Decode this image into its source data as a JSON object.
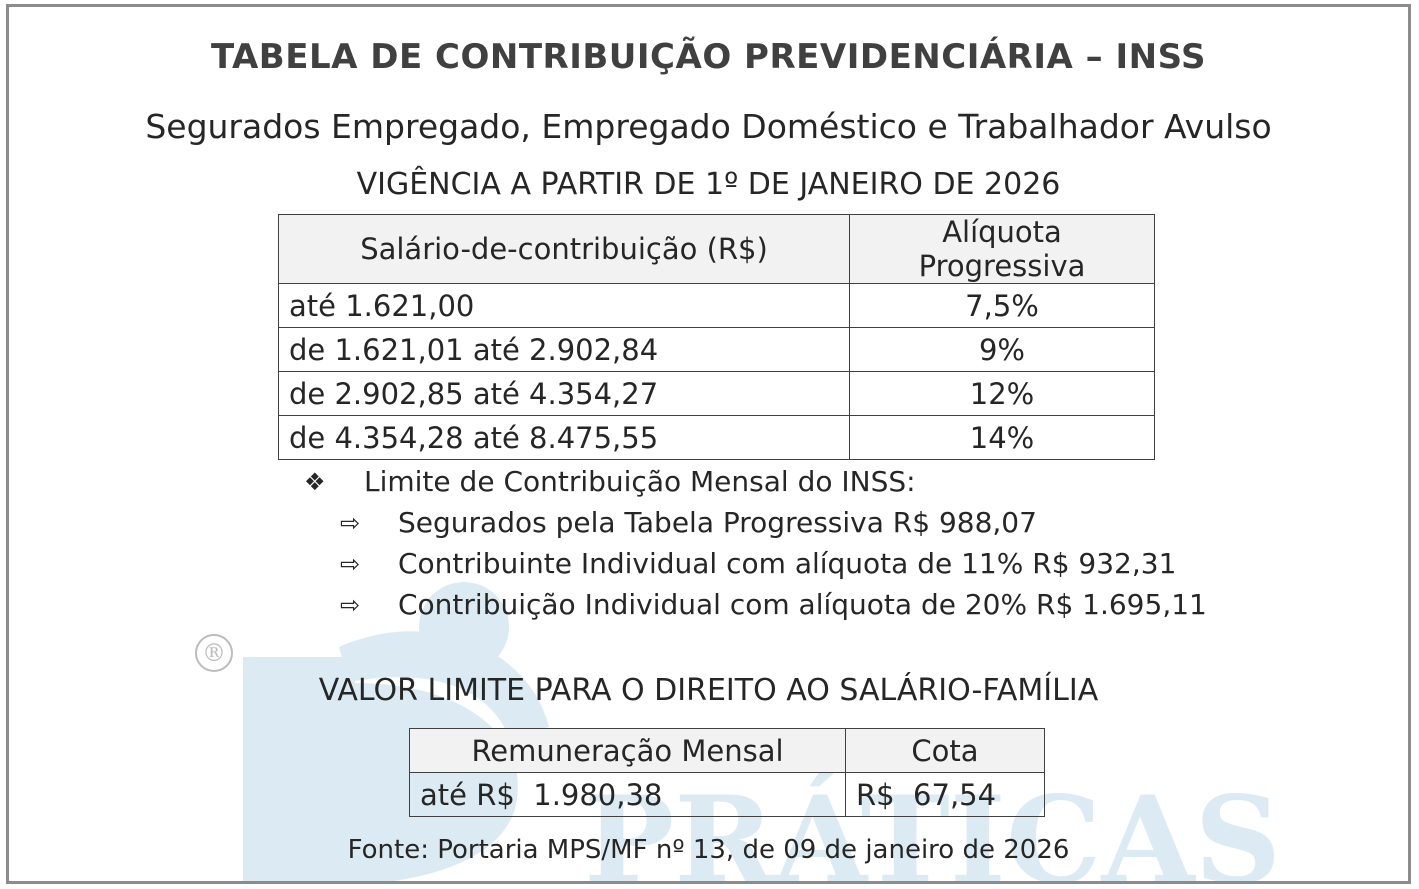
{
  "title": "TABELA DE CONTRIBUIÇÃO PREVIDENCIÁRIA – INSS",
  "subtitle": "Segurados Empregado, Empregado Doméstico e Trabalhador Avulso",
  "vigencia": "VIGÊNCIA A PARTIR DE 1º DE JANEIRO DE 2026",
  "table1": {
    "headers": [
      "Salário-de-contribuição (R$)",
      "Alíquota Progressiva"
    ],
    "rows": [
      [
        "até 1.621,00",
        "7,5%"
      ],
      [
        "de 1.621,01 até 2.902,84",
        "9%"
      ],
      [
        "de 2.902,85 até 4.354,27",
        "12%"
      ],
      [
        "de 4.354,28 até 8.475,55",
        "14%"
      ]
    ]
  },
  "limit": {
    "heading": "Limite de Contribuição Mensal do INSS:",
    "items": [
      "Segurados pela Tabela Progressiva R$ 988,07",
      "Contribuinte Individual com alíquota de 11% R$ 932,31",
      "Contribuição Individual com alíquota de 20% R$ 1.695,11"
    ]
  },
  "salario_familia": {
    "heading": "VALOR LIMITE PARA O DIREITO AO SALÁRIO-FAMÍLIA",
    "headers": [
      "Remuneração Mensal",
      "Cota"
    ],
    "row": [
      "até R$  1.980,38",
      "R$  67,54"
    ]
  },
  "source": "Fonte: Portaria MPS/MF nº 13, de 09 de janeiro de 2026",
  "watermark": {
    "text": "PRÁTICAS",
    "registered_mark": "®"
  },
  "colors": {
    "border": "#8c8c8c",
    "header_bg": "#f2f2f2",
    "watermark": "#d9e8f1"
  }
}
